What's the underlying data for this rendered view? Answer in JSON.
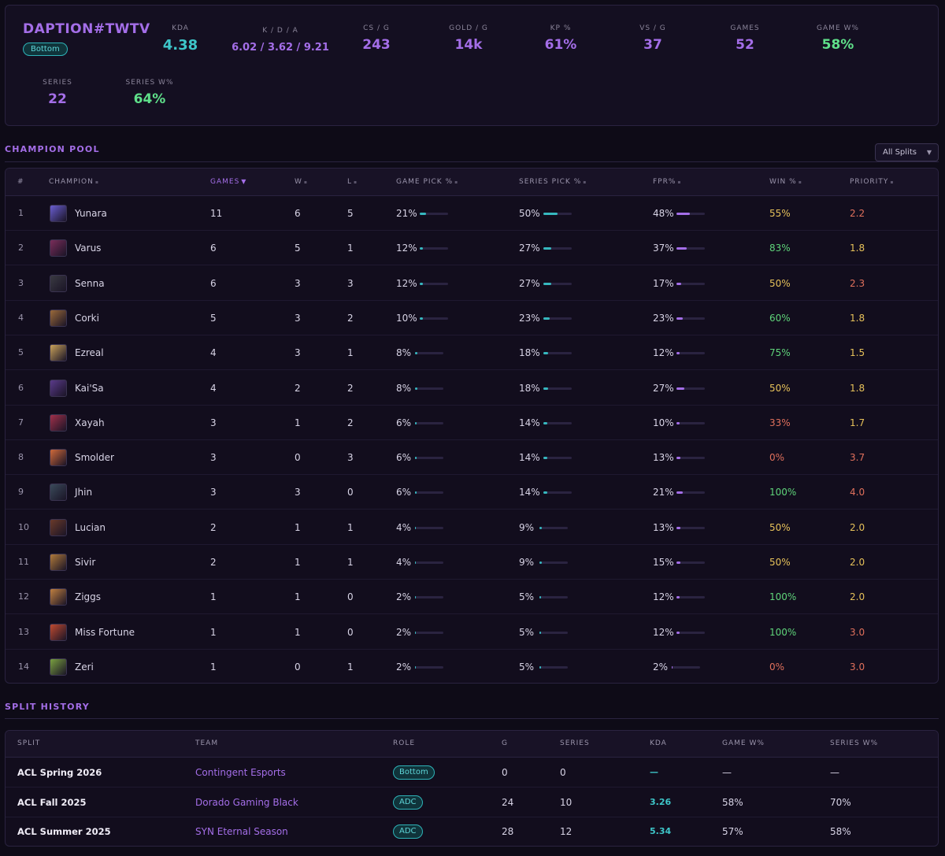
{
  "profile": {
    "name": "DAPTION#TWTV",
    "role": "Bottom",
    "stats": [
      {
        "label": "KDA",
        "value": "4.38",
        "tone": "teal"
      },
      {
        "label": "K / D / A",
        "value": "6.02 / 3.62 / 9.21",
        "tone": "small"
      },
      {
        "label": "CS / G",
        "value": "243",
        "tone": "purple"
      },
      {
        "label": "GOLD / G",
        "value": "14k",
        "tone": "purple"
      },
      {
        "label": "KP %",
        "value": "61%",
        "tone": "purple"
      },
      {
        "label": "VS / G",
        "value": "37",
        "tone": "purple"
      },
      {
        "label": "GAMES",
        "value": "52",
        "tone": "purple"
      },
      {
        "label": "GAME W%",
        "value": "58%",
        "tone": "green"
      },
      {
        "label": "SERIES",
        "value": "22",
        "tone": "purple"
      },
      {
        "label": "SERIES W%",
        "value": "64%",
        "tone": "green"
      }
    ]
  },
  "champion_pool": {
    "title": "CHAMPION POOL",
    "filter": "All Splits",
    "columns": [
      "#",
      "CHAMPION",
      "GAMES",
      "W",
      "L",
      "GAME PICK %",
      "SERIES PICK %",
      "FPR%",
      "WIN %",
      "PRIORITY"
    ],
    "sorted_column": "GAMES",
    "rows": [
      {
        "rank": "1",
        "champion": "Yunara",
        "games": "11",
        "w": "6",
        "l": "5",
        "game_pick": "21%",
        "game_pick_frac": 0.21,
        "series_pick": "50%",
        "series_pick_frac": 0.5,
        "fpr": "48%",
        "fpr_frac": 0.48,
        "win": "55%",
        "priority": "2.2",
        "win_color": "#e6c15a",
        "priority_color": "#e0705c",
        "avatar_color": "#6a5ed1"
      },
      {
        "rank": "2",
        "champion": "Varus",
        "games": "6",
        "w": "5",
        "l": "1",
        "game_pick": "12%",
        "game_pick_frac": 0.12,
        "series_pick": "27%",
        "series_pick_frac": 0.27,
        "fpr": "37%",
        "fpr_frac": 0.37,
        "win": "83%",
        "priority": "1.8",
        "win_color": "#5fd47a",
        "priority_color": "#e6c15a",
        "avatar_color": "#7a2d5a"
      },
      {
        "rank": "3",
        "champion": "Senna",
        "games": "6",
        "w": "3",
        "l": "3",
        "game_pick": "12%",
        "game_pick_frac": 0.12,
        "series_pick": "27%",
        "series_pick_frac": 0.27,
        "fpr": "17%",
        "fpr_frac": 0.17,
        "win": "50%",
        "priority": "2.3",
        "win_color": "#e6c15a",
        "priority_color": "#e0705c",
        "avatar_color": "#3a3a42"
      },
      {
        "rank": "4",
        "champion": "Corki",
        "games": "5",
        "w": "3",
        "l": "2",
        "game_pick": "10%",
        "game_pick_frac": 0.1,
        "series_pick": "23%",
        "series_pick_frac": 0.23,
        "fpr": "23%",
        "fpr_frac": 0.23,
        "win": "60%",
        "priority": "1.8",
        "win_color": "#5fd47a",
        "priority_color": "#e6c15a",
        "avatar_color": "#9a6a3a"
      },
      {
        "rank": "5",
        "champion": "Ezreal",
        "games": "4",
        "w": "3",
        "l": "1",
        "game_pick": "8%",
        "game_pick_frac": 0.08,
        "series_pick": "18%",
        "series_pick_frac": 0.18,
        "fpr": "12%",
        "fpr_frac": 0.12,
        "win": "75%",
        "priority": "1.5",
        "win_color": "#5fd47a",
        "priority_color": "#e6c15a",
        "avatar_color": "#c9a25a"
      },
      {
        "rank": "6",
        "champion": "Kai'Sa",
        "games": "4",
        "w": "2",
        "l": "2",
        "game_pick": "8%",
        "game_pick_frac": 0.08,
        "series_pick": "18%",
        "series_pick_frac": 0.18,
        "fpr": "27%",
        "fpr_frac": 0.27,
        "win": "50%",
        "priority": "1.8",
        "win_color": "#e6c15a",
        "priority_color": "#e6c15a",
        "avatar_color": "#5a3a8a"
      },
      {
        "rank": "7",
        "champion": "Xayah",
        "games": "3",
        "w": "1",
        "l": "2",
        "game_pick": "6%",
        "game_pick_frac": 0.06,
        "series_pick": "14%",
        "series_pick_frac": 0.14,
        "fpr": "10%",
        "fpr_frac": 0.1,
        "win": "33%",
        "priority": "1.7",
        "win_color": "#e0705c",
        "priority_color": "#e6c15a",
        "avatar_color": "#a0304a"
      },
      {
        "rank": "8",
        "champion": "Smolder",
        "games": "3",
        "w": "0",
        "l": "3",
        "game_pick": "6%",
        "game_pick_frac": 0.06,
        "series_pick": "14%",
        "series_pick_frac": 0.14,
        "fpr": "13%",
        "fpr_frac": 0.13,
        "win": "0%",
        "priority": "3.7",
        "win_color": "#e0705c",
        "priority_color": "#e0705c",
        "avatar_color": "#d06a3a"
      },
      {
        "rank": "9",
        "champion": "Jhin",
        "games": "3",
        "w": "3",
        "l": "0",
        "game_pick": "6%",
        "game_pick_frac": 0.06,
        "series_pick": "14%",
        "series_pick_frac": 0.14,
        "fpr": "21%",
        "fpr_frac": 0.21,
        "win": "100%",
        "priority": "4.0",
        "win_color": "#5fd47a",
        "priority_color": "#e0705c",
        "avatar_color": "#3a4a5a"
      },
      {
        "rank": "10",
        "champion": "Lucian",
        "games": "2",
        "w": "1",
        "l": "1",
        "game_pick": "4%",
        "game_pick_frac": 0.04,
        "series_pick": "9%",
        "series_pick_frac": 0.09,
        "fpr": "13%",
        "fpr_frac": 0.13,
        "win": "50%",
        "priority": "2.0",
        "win_color": "#e6c15a",
        "priority_color": "#e6c15a",
        "avatar_color": "#6a3a2a"
      },
      {
        "rank": "11",
        "champion": "Sivir",
        "games": "2",
        "w": "1",
        "l": "1",
        "game_pick": "4%",
        "game_pick_frac": 0.04,
        "series_pick": "9%",
        "series_pick_frac": 0.09,
        "fpr": "15%",
        "fpr_frac": 0.15,
        "win": "50%",
        "priority": "2.0",
        "win_color": "#e6c15a",
        "priority_color": "#e6c15a",
        "avatar_color": "#b07a3a"
      },
      {
        "rank": "12",
        "champion": "Ziggs",
        "games": "1",
        "w": "1",
        "l": "0",
        "game_pick": "2%",
        "game_pick_frac": 0.02,
        "series_pick": "5%",
        "series_pick_frac": 0.05,
        "fpr": "12%",
        "fpr_frac": 0.12,
        "win": "100%",
        "priority": "2.0",
        "win_color": "#5fd47a",
        "priority_color": "#e6c15a",
        "avatar_color": "#c08040"
      },
      {
        "rank": "13",
        "champion": "Miss Fortune",
        "games": "1",
        "w": "1",
        "l": "0",
        "game_pick": "2%",
        "game_pick_frac": 0.02,
        "series_pick": "5%",
        "series_pick_frac": 0.05,
        "fpr": "12%",
        "fpr_frac": 0.12,
        "win": "100%",
        "priority": "3.0",
        "win_color": "#5fd47a",
        "priority_color": "#e0705c",
        "avatar_color": "#c04a30"
      },
      {
        "rank": "14",
        "champion": "Zeri",
        "games": "1",
        "w": "0",
        "l": "1",
        "game_pick": "2%",
        "game_pick_frac": 0.02,
        "series_pick": "5%",
        "series_pick_frac": 0.05,
        "fpr": "2%",
        "fpr_frac": 0.02,
        "win": "0%",
        "priority": "3.0",
        "win_color": "#e0705c",
        "priority_color": "#e0705c",
        "avatar_color": "#7aa040"
      }
    ]
  },
  "split_history": {
    "title": "SPLIT HISTORY",
    "columns": [
      "SPLIT",
      "TEAM",
      "ROLE",
      "G",
      "SERIES",
      "KDA",
      "GAME W%",
      "SERIES W%"
    ],
    "rows": [
      {
        "split": "ACL Spring 2026",
        "team": "Contingent Esports",
        "role": "Bottom",
        "g": "0",
        "series": "0",
        "kda": "—",
        "game_w": "—",
        "series_w": "—"
      },
      {
        "split": "ACL Fall 2025",
        "team": "Dorado Gaming Black",
        "role": "ADC",
        "g": "24",
        "series": "10",
        "kda": "3.26",
        "game_w": "58%",
        "series_w": "70%"
      },
      {
        "split": "ACL Summer 2025",
        "team": "SYN Eternal Season",
        "role": "ADC",
        "g": "28",
        "series": "12",
        "kda": "5.34",
        "game_w": "57%",
        "series_w": "58%"
      }
    ]
  }
}
